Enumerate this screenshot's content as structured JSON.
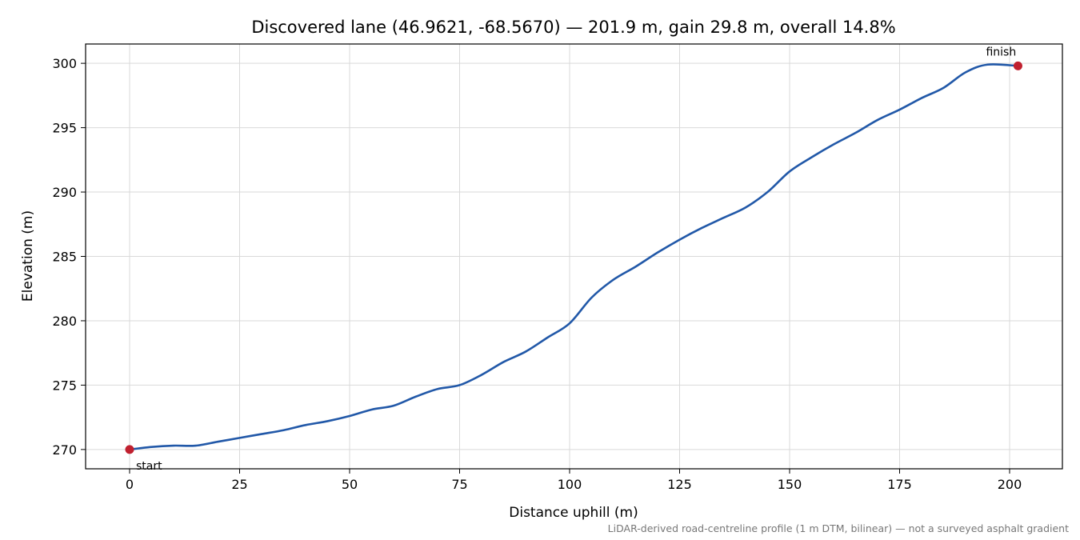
{
  "chart_data": {
    "type": "line",
    "title": "Discovered lane (46.9621, -68.5670) — 201.9 m, gain 29.8 m, overall 14.8%",
    "xlabel": "Distance uphill (m)",
    "ylabel": "Elevation (m)",
    "xlim": [
      -10,
      212
    ],
    "ylim": [
      268.5,
      301.5
    ],
    "xticks": [
      0,
      25,
      50,
      75,
      100,
      125,
      150,
      175,
      200
    ],
    "yticks": [
      270,
      275,
      280,
      285,
      290,
      295,
      300
    ],
    "grid": true,
    "line_color": "#2158a8",
    "marker_color": "#c0202f",
    "series": [
      {
        "x": [
          0,
          5,
          10,
          15,
          20,
          25,
          30,
          35,
          40,
          45,
          50,
          55,
          60,
          65,
          70,
          75,
          80,
          85,
          90,
          95,
          100,
          105,
          110,
          115,
          120,
          125,
          130,
          135,
          140,
          145,
          150,
          155,
          160,
          165,
          170,
          175,
          180,
          185,
          190,
          195,
          201.9
        ],
        "values": [
          270.0,
          270.2,
          270.3,
          270.3,
          270.6,
          270.9,
          271.2,
          271.5,
          271.9,
          272.2,
          272.6,
          273.1,
          273.4,
          274.1,
          274.7,
          275.0,
          275.8,
          276.8,
          277.6,
          278.7,
          279.8,
          281.8,
          283.2,
          284.2,
          285.3,
          286.3,
          287.2,
          288.0,
          288.8,
          290.0,
          291.6,
          292.7,
          293.7,
          294.6,
          295.6,
          296.4,
          297.3,
          298.1,
          299.3,
          299.9,
          299.8
        ]
      }
    ],
    "markers": [
      {
        "label": "start",
        "x": 0,
        "y": 270.0
      },
      {
        "label": "finish",
        "x": 201.9,
        "y": 299.8
      }
    ],
    "footnote": "LiDAR-derived road-centreline profile (1 m DTM, bilinear) — not a surveyed asphalt gradient"
  }
}
